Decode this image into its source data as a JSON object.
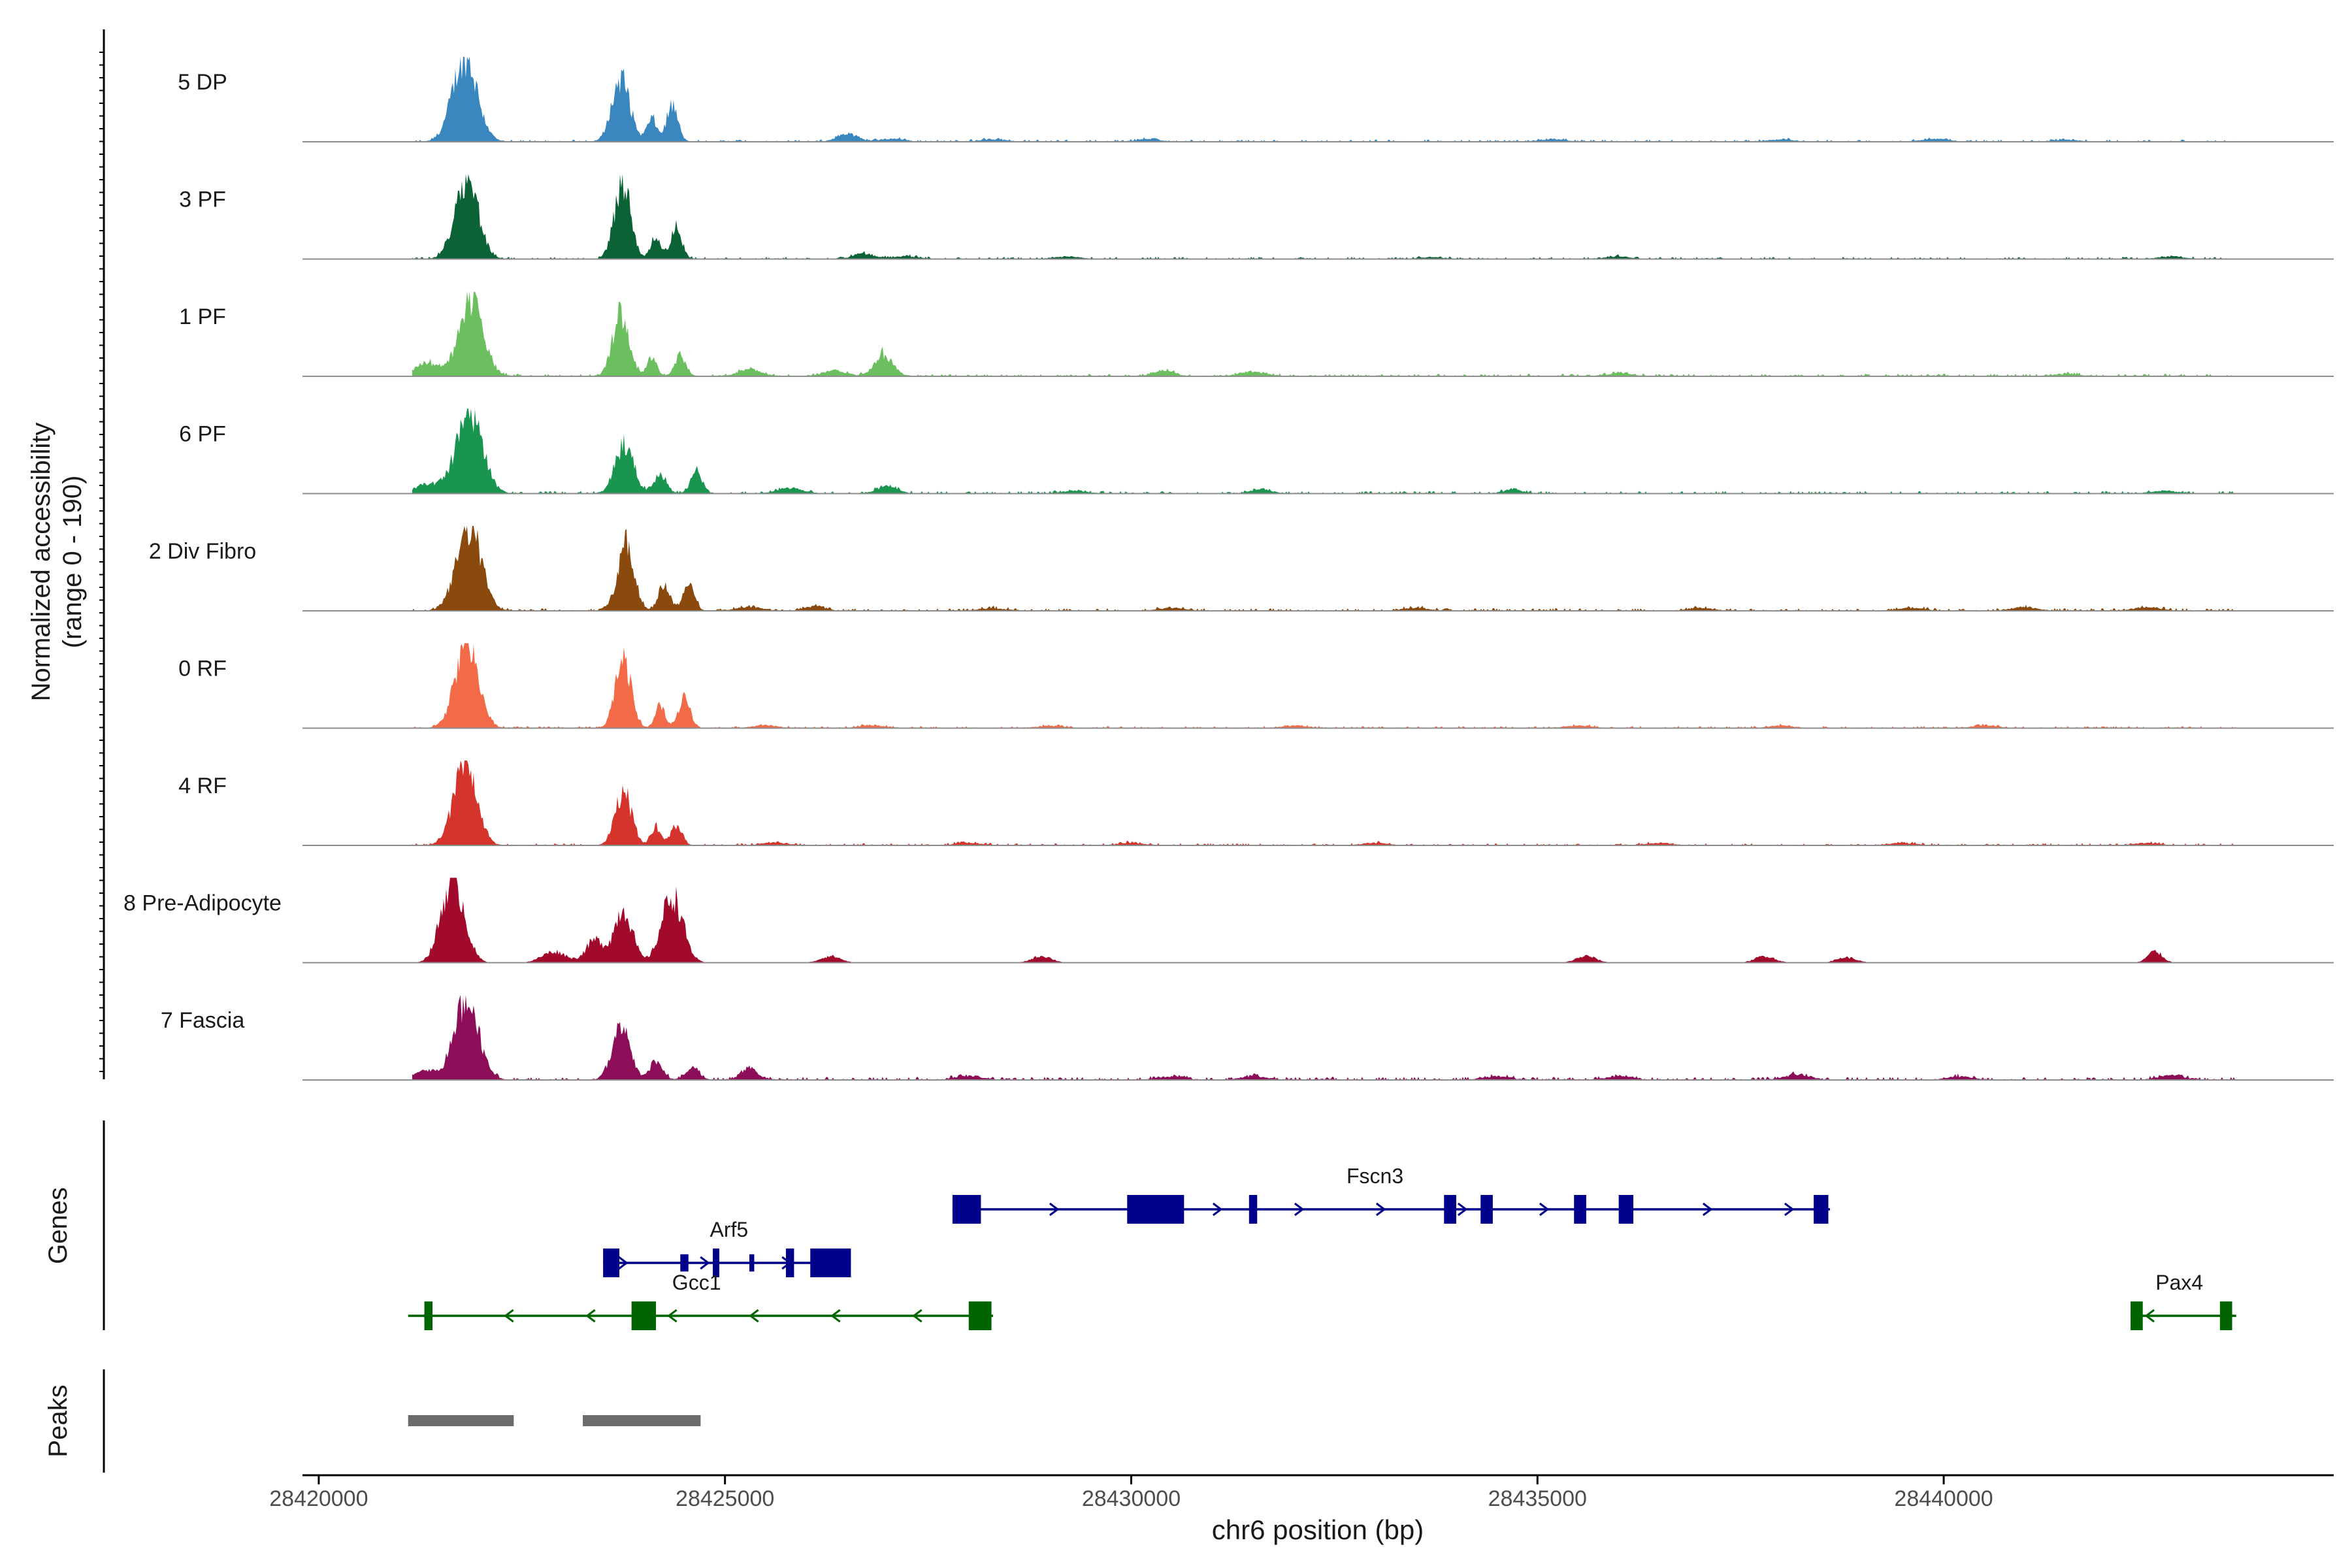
{
  "chart_data": {
    "type": "area",
    "title": "",
    "region": "chr6",
    "xlabel": "chr6 position (bp)",
    "ylabel": "Normalized accessibility",
    "ylabel_range": "(range 0 - 190)",
    "y_range": [
      0,
      190
    ],
    "xlim": [
      28419800,
      28444800
    ],
    "x_ticks": [
      28420000,
      28425000,
      28430000,
      28435000,
      28440000
    ],
    "x_tick_labels": [
      "28420000",
      "28425000",
      "28430000",
      "28435000",
      "28440000"
    ],
    "coverage_extent": [
      28421150,
      28443600
    ],
    "tracks": [
      {
        "name": "5 DP",
        "color": "#3a87c0",
        "peaks": [
          [
            28421800,
            190,
            150
          ],
          [
            28423720,
            140,
            110
          ],
          [
            28424100,
            50,
            60
          ],
          [
            28424350,
            80,
            70
          ],
          [
            28426500,
            18,
            120
          ],
          [
            28427050,
            6,
            150
          ],
          [
            28428300,
            5,
            150
          ],
          [
            28430200,
            5,
            150
          ],
          [
            28435200,
            5,
            150
          ],
          [
            28438000,
            5,
            150
          ],
          [
            28439900,
            6,
            150
          ],
          [
            28441500,
            4,
            150
          ]
        ],
        "noise": 5
      },
      {
        "name": "3 PF",
        "color": "#0b6234",
        "peaks": [
          [
            28421820,
            185,
            140
          ],
          [
            28423740,
            170,
            100
          ],
          [
            28424150,
            50,
            60
          ],
          [
            28424400,
            70,
            70
          ],
          [
            28426700,
            12,
            120
          ],
          [
            28427200,
            6,
            150
          ],
          [
            28429200,
            5,
            150
          ],
          [
            28433700,
            4,
            150
          ],
          [
            28436000,
            5,
            150
          ],
          [
            28442800,
            5,
            150
          ]
        ],
        "noise": 5
      },
      {
        "name": "1 PF",
        "color": "#6bbf5f",
        "peaks": [
          [
            28421880,
            175,
            145
          ],
          [
            28421350,
            30,
            150
          ],
          [
            28423720,
            140,
            100
          ],
          [
            28424100,
            40,
            60
          ],
          [
            28424450,
            45,
            70
          ],
          [
            28425300,
            15,
            140
          ],
          [
            28426350,
            12,
            140
          ],
          [
            28426950,
            50,
            110
          ],
          [
            28430400,
            14,
            120
          ],
          [
            28431500,
            10,
            150
          ],
          [
            28436000,
            6,
            150
          ],
          [
            28441500,
            5,
            150
          ]
        ],
        "noise": 6
      },
      {
        "name": "6 PF",
        "color": "#1a9550",
        "peaks": [
          [
            28421850,
            180,
            160
          ],
          [
            28421350,
            20,
            150
          ],
          [
            28423760,
            110,
            110
          ],
          [
            28424200,
            40,
            80
          ],
          [
            28424650,
            50,
            70
          ],
          [
            28425800,
            12,
            150
          ],
          [
            28427000,
            16,
            120
          ],
          [
            28429300,
            6,
            150
          ],
          [
            28431600,
            10,
            120
          ],
          [
            28434700,
            8,
            120
          ],
          [
            28442700,
            6,
            150
          ]
        ],
        "noise": 6
      },
      {
        "name": "2 Div Fibro",
        "color": "#8a4a0e",
        "peaks": [
          [
            28421850,
            185,
            150
          ],
          [
            28423780,
            150,
            100
          ],
          [
            28424250,
            60,
            70
          ],
          [
            28424550,
            60,
            70
          ],
          [
            28425300,
            8,
            150
          ],
          [
            28426100,
            10,
            120
          ],
          [
            28428300,
            5,
            150
          ],
          [
            28430500,
            6,
            150
          ],
          [
            28433500,
            6,
            150
          ],
          [
            28437000,
            6,
            150
          ],
          [
            28439600,
            6,
            150
          ],
          [
            28441000,
            8,
            150
          ],
          [
            28442500,
            8,
            150
          ]
        ],
        "noise": 6
      },
      {
        "name": "0 RF",
        "color": "#f26a48",
        "peaks": [
          [
            28421820,
            190,
            140
          ],
          [
            28423750,
            155,
            95
          ],
          [
            28424200,
            50,
            60
          ],
          [
            28424500,
            70,
            70
          ],
          [
            28425500,
            6,
            150
          ],
          [
            28426800,
            6,
            150
          ],
          [
            28429000,
            5,
            150
          ],
          [
            28432000,
            5,
            150
          ],
          [
            28435500,
            5,
            150
          ],
          [
            28438000,
            5,
            150
          ],
          [
            28440500,
            5,
            150
          ]
        ],
        "noise": 5
      },
      {
        "name": "4 RF",
        "color": "#d5342d",
        "peaks": [
          [
            28421800,
            180,
            140
          ],
          [
            28423750,
            120,
            100
          ],
          [
            28424150,
            40,
            60
          ],
          [
            28424400,
            45,
            70
          ],
          [
            28425600,
            6,
            150
          ],
          [
            28428000,
            6,
            150
          ],
          [
            28430000,
            5,
            150
          ],
          [
            28433000,
            5,
            150
          ],
          [
            28436500,
            5,
            150
          ],
          [
            28439500,
            5,
            150
          ],
          [
            28442500,
            5,
            150
          ]
        ],
        "noise": 5
      },
      {
        "name": "8 Pre-Adipocyte",
        "color": "#a20a2c",
        "peaks": [
          [
            28421650,
            190,
            140
          ],
          [
            28423400,
            50,
            110
          ],
          [
            28423750,
            120,
            110
          ],
          [
            28424350,
            150,
            130
          ],
          [
            28422900,
            25,
            150
          ],
          [
            28426300,
            15,
            120
          ],
          [
            28428900,
            15,
            120
          ],
          [
            28435600,
            15,
            120
          ],
          [
            28437800,
            15,
            120
          ],
          [
            28438800,
            12,
            120
          ],
          [
            28442600,
            25,
            90
          ]
        ],
        "noise": 0
      },
      {
        "name": "7 Fascia",
        "color": "#8c0d58",
        "peaks": [
          [
            28421820,
            175,
            150
          ],
          [
            28421300,
            20,
            150
          ],
          [
            28423720,
            115,
            110
          ],
          [
            28424150,
            40,
            80
          ],
          [
            28424600,
            30,
            80
          ],
          [
            28425300,
            25,
            100
          ],
          [
            28428000,
            8,
            150
          ],
          [
            28430500,
            8,
            150
          ],
          [
            28431500,
            8,
            150
          ],
          [
            28434500,
            8,
            150
          ],
          [
            28436000,
            8,
            150
          ],
          [
            28438200,
            12,
            150
          ],
          [
            28440200,
            7,
            150
          ],
          [
            28442800,
            10,
            150
          ]
        ],
        "noise": 7
      }
    ],
    "genes_label": "Genes",
    "genes": [
      {
        "name": "Fscn3",
        "strand": "+",
        "row": 0,
        "color": "#00008b",
        "start": 28427800,
        "end": 28438600,
        "exons": [
          [
            28427800,
            28428150,
            1
          ],
          [
            28429950,
            28430650,
            1
          ],
          [
            28431450,
            28431550,
            1
          ],
          [
            28433850,
            28434000,
            1
          ],
          [
            28434300,
            28434450,
            1
          ],
          [
            28435450,
            28435600,
            1
          ],
          [
            28436000,
            28436180,
            1
          ],
          [
            28438400,
            28438580,
            1
          ]
        ]
      },
      {
        "name": "Arf5",
        "strand": "+",
        "row": 1,
        "color": "#00008b",
        "start": 28423500,
        "end": 28426550,
        "exons": [
          [
            28423500,
            28423700,
            1
          ],
          [
            28424450,
            28424550,
            0.6
          ],
          [
            28424850,
            28424930,
            1
          ],
          [
            28425300,
            28425360,
            0.6
          ],
          [
            28425750,
            28425850,
            1
          ],
          [
            28426050,
            28426550,
            1
          ]
        ]
      },
      {
        "name": "Gcc1",
        "strand": "-",
        "row": 2,
        "color": "#006400",
        "start": 28421100,
        "end": 28428300,
        "exons": [
          [
            28421300,
            28421400,
            1
          ],
          [
            28423850,
            28424150,
            1
          ],
          [
            28428000,
            28428280,
            1
          ]
        ]
      },
      {
        "name": "Pax4",
        "strand": "-",
        "row": 2,
        "color": "#006400",
        "start": 28442300,
        "end": 28443600,
        "exons": [
          [
            28442300,
            28442450,
            1
          ],
          [
            28443400,
            28443550,
            1
          ]
        ]
      }
    ],
    "peaks_label": "Peaks",
    "peak_regions": [
      [
        28421100,
        28422400
      ],
      [
        28423250,
        28424700
      ]
    ]
  }
}
